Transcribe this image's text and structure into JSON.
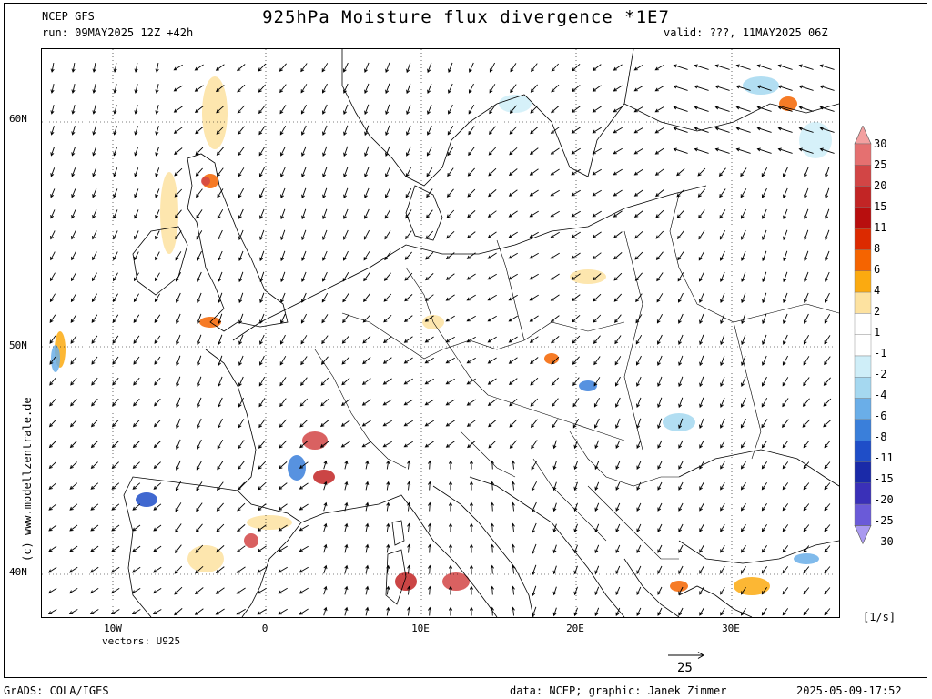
{
  "header": {
    "model": "NCEP GFS",
    "run": "run: 09MAY2025 12Z +42h",
    "title": "925hPa Moisture flux divergence *1E7",
    "valid": "valid: ???, 11MAY2025 06Z"
  },
  "map": {
    "lat_labels": [
      "60N",
      "50N",
      "40N"
    ],
    "lon_labels": [
      "10W",
      "0",
      "10E",
      "20E",
      "30E"
    ],
    "vectors_label": "vectors: U925",
    "ref_vector": "25",
    "watermark": "(c) www.modellzentrale.de",
    "units": "[1/s]"
  },
  "legend": {
    "labels": [
      "30",
      "25",
      "20",
      "15",
      "11",
      "8",
      "6",
      "4",
      "2",
      "1",
      "-1",
      "-2",
      "-4",
      "-6",
      "-8",
      "-11",
      "-15",
      "-20",
      "-25",
      "-30"
    ],
    "colors": [
      "#f3a0a0",
      "#e57070",
      "#d24545",
      "#c22525",
      "#b80e0e",
      "#dc2a00",
      "#f56400",
      "#fbaa10",
      "#fde2a0",
      "#ffffff",
      "#ffffff",
      "#cfeef8",
      "#a5d8f0",
      "#6aaee8",
      "#3a7fda",
      "#1f4ec8",
      "#1a2aa8",
      "#3a30b8",
      "#6a5ad8",
      "#aa9af0"
    ]
  },
  "footer": {
    "left": "GrADS: COLA/IGES",
    "middle": "data: NCEP; graphic: Janek Zimmer",
    "right": "2025-05-09-17:52"
  }
}
